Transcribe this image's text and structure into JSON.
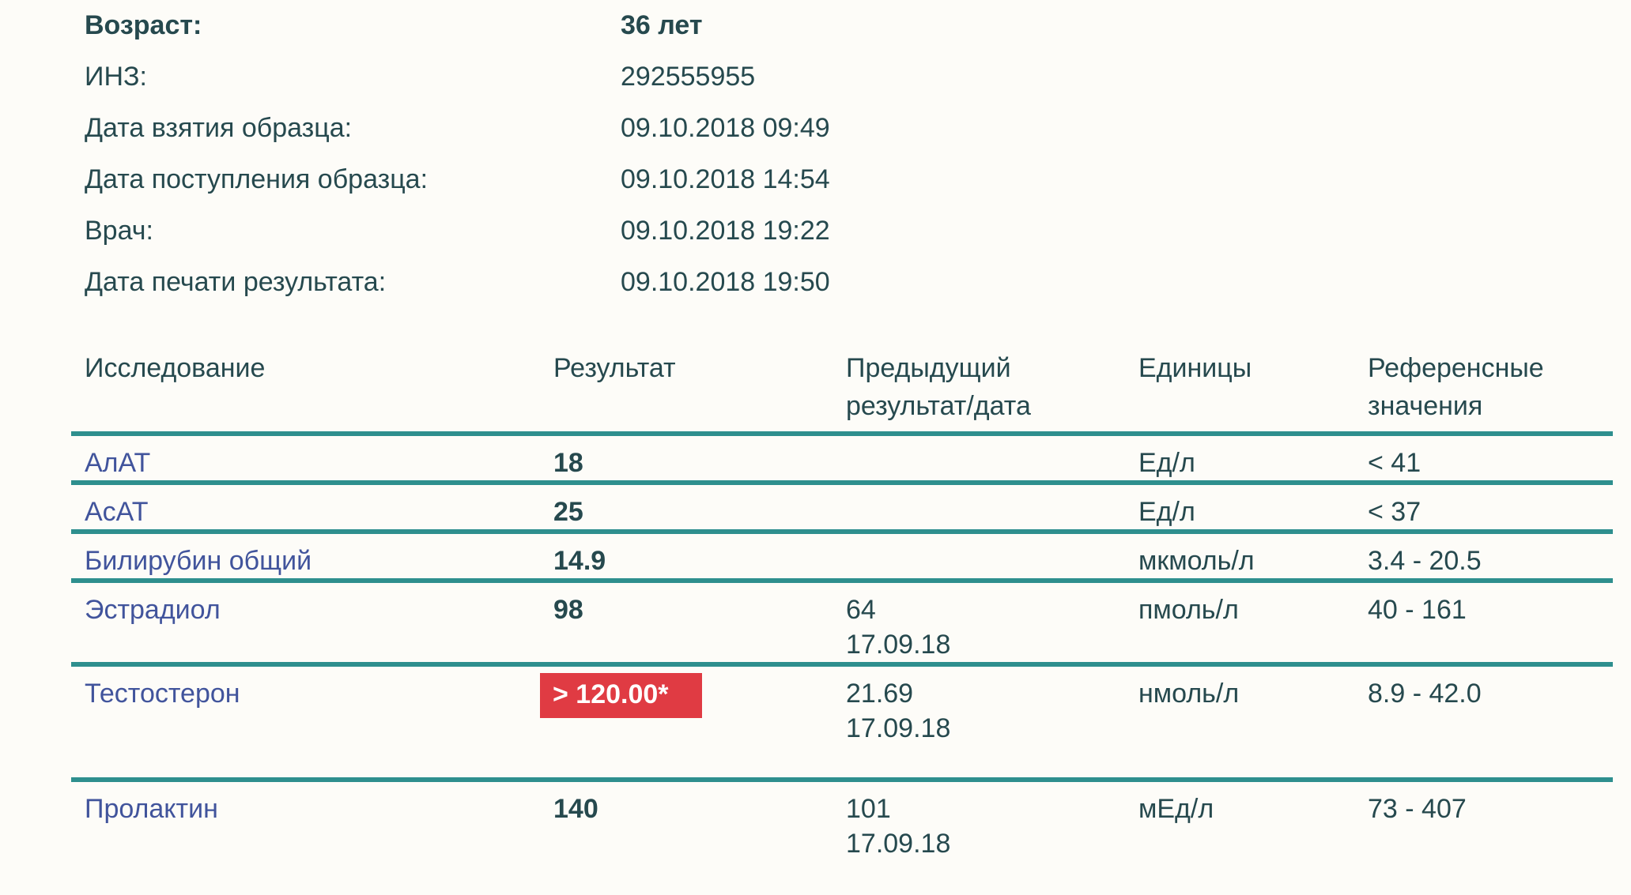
{
  "meta": {
    "colors": {
      "background": "#fdfcf8",
      "body_text": "#26494e",
      "test_name_text": "#41549c",
      "separator_line": "#2e8f8e",
      "alert_background": "#e03b43",
      "alert_text": "#ffffff"
    }
  },
  "patient_info": {
    "rows": [
      {
        "label": "Возраст:",
        "value": "36 лет",
        "bold": true
      },
      {
        "label": "ИНЗ:",
        "value": "292555955",
        "bold": false
      },
      {
        "label": "Дата взятия образца:",
        "value": "09.10.2018 09:49",
        "bold": false
      },
      {
        "label": "Дата поступления образца:",
        "value": "09.10.2018 14:54",
        "bold": false
      },
      {
        "label": "Врач:",
        "value": "09.10.2018 19:22",
        "bold": false
      },
      {
        "label": "Дата печати результата:",
        "value": "09.10.2018 19:50",
        "bold": false
      }
    ]
  },
  "results_table": {
    "headers": {
      "test": "Исследование",
      "result": "Результат",
      "previous": "Предыдущий результат/дата",
      "units": "Единицы",
      "reference": "Референсные значения"
    },
    "rows": [
      {
        "test": "АлАТ",
        "result": "18",
        "abnormal": false,
        "previous": "",
        "previous_date": "",
        "units": "Ед/л",
        "reference": "< 41"
      },
      {
        "test": "АсАТ",
        "result": "25",
        "abnormal": false,
        "previous": "",
        "previous_date": "",
        "units": "Ед/л",
        "reference": "< 37"
      },
      {
        "test": "Билирубин общий",
        "result": "14.9",
        "abnormal": false,
        "previous": "",
        "previous_date": "",
        "units": "мкмоль/л",
        "reference": "3.4 - 20.5"
      },
      {
        "test": "Эстрадиол",
        "result": "98",
        "abnormal": false,
        "previous": "64",
        "previous_date": "17.09.18",
        "units": "пмоль/л",
        "reference": "40 - 161"
      },
      {
        "test": "Тестостерон",
        "result": "> 120.00*",
        "abnormal": true,
        "previous": "21.69",
        "previous_date": "17.09.18",
        "units": "нмоль/л",
        "reference": "8.9 - 42.0"
      },
      {
        "test": "Пролактин",
        "result": "140",
        "abnormal": false,
        "previous": "101",
        "previous_date": "17.09.18",
        "units": "мЕд/л",
        "reference": "73 - 407"
      }
    ]
  }
}
